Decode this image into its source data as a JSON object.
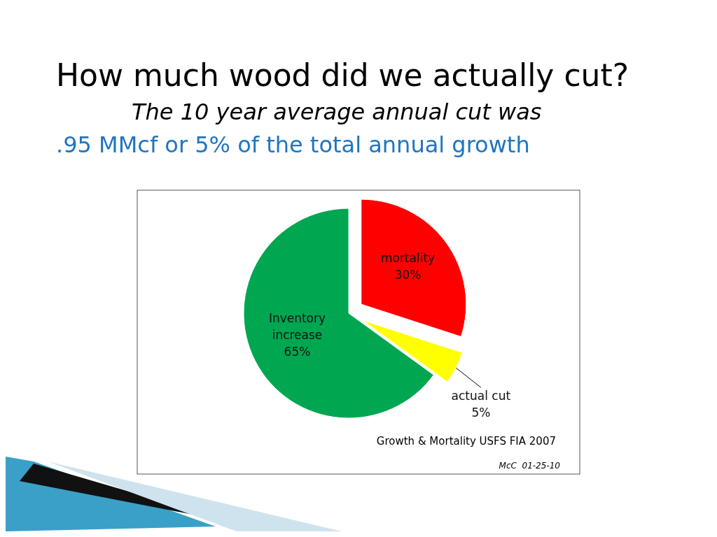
{
  "chart_data": {
    "type": "pie",
    "title": "How much wood did we actually cut?",
    "subtitle": "The 10 year average annual cut was",
    "categories": [
      "mortality",
      "actual cut",
      "Inventory increase"
    ],
    "values": [
      30,
      5,
      65
    ],
    "colors": [
      "#ff0000",
      "#ffff00",
      "#00a650"
    ],
    "value_labels": [
      "30%",
      "5%",
      "65%"
    ],
    "annotations": [
      ".95 MMcf or 5% of the total annual growth",
      "Growth & Mortality USFS FIA 2007",
      "McC  01-25-10"
    ]
  }
}
